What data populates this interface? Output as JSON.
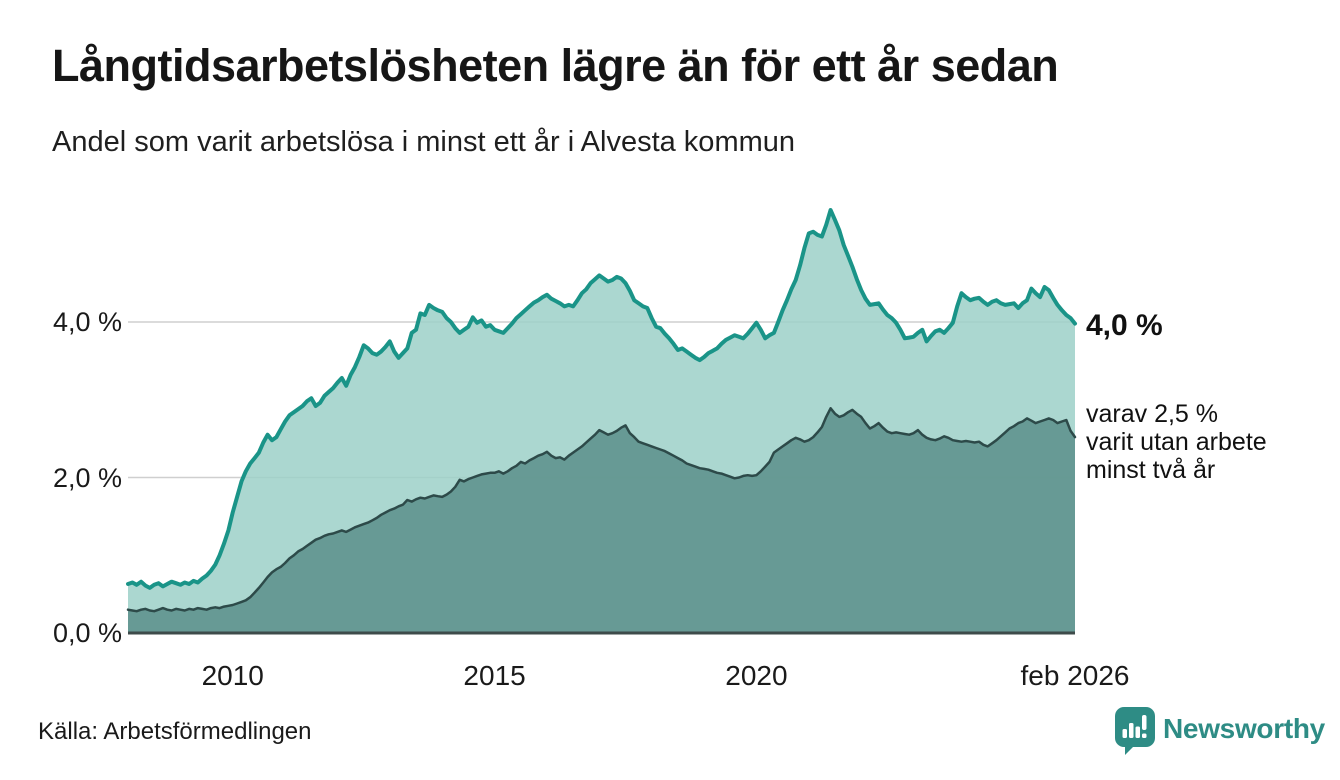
{
  "header": {
    "title": "Långtidsarbetslösheten lägre än för ett år sedan",
    "subtitle": "Andel som varit arbetslösa i minst ett år i Alvesta kommun"
  },
  "chart_data": {
    "type": "area",
    "title": "Långtidsarbetslösheten lägre än för ett år sedan",
    "unit": "%",
    "x_start": "2008-01",
    "x_end": "2026-02",
    "x_interval": "monthly",
    "ylim": [
      0,
      5.6
    ],
    "grid": "horizontal",
    "yticks": [
      {
        "value": 0,
        "label": "0,0 %"
      },
      {
        "value": 2,
        "label": "2,0 %"
      },
      {
        "value": 4,
        "label": "4,0 %"
      }
    ],
    "xticks": [
      {
        "month_index": 24,
        "label": "2010"
      },
      {
        "month_index": 84,
        "label": "2015"
      },
      {
        "month_index": 144,
        "label": "2020"
      },
      {
        "month_index": 217,
        "label": "feb 2026"
      }
    ],
    "colors": {
      "gridline": "#cfcfcf",
      "baseline": "#3e4b4a"
    },
    "series": [
      {
        "name": "Andel arbetslösa minst ett år",
        "line_color": "#1a9488",
        "fill_color": "rgba(156,208,200,0.85)",
        "line_width": 4,
        "end_value": 4.0,
        "values": [
          0.63,
          0.65,
          0.62,
          0.66,
          0.61,
          0.58,
          0.62,
          0.64,
          0.6,
          0.63,
          0.66,
          0.64,
          0.62,
          0.65,
          0.63,
          0.67,
          0.65,
          0.7,
          0.74,
          0.8,
          0.88,
          1.0,
          1.15,
          1.32,
          1.55,
          1.75,
          1.95,
          2.08,
          2.18,
          2.25,
          2.32,
          2.45,
          2.55,
          2.48,
          2.52,
          2.62,
          2.72,
          2.8,
          2.84,
          2.88,
          2.92,
          2.98,
          3.02,
          2.92,
          2.96,
          3.05,
          3.1,
          3.15,
          3.22,
          3.28,
          3.18,
          3.32,
          3.42,
          3.55,
          3.7,
          3.66,
          3.6,
          3.58,
          3.62,
          3.68,
          3.75,
          3.62,
          3.54,
          3.6,
          3.66,
          3.86,
          3.9,
          4.11,
          4.09,
          4.22,
          4.18,
          4.15,
          4.13,
          4.05,
          4.0,
          3.92,
          3.86,
          3.9,
          3.94,
          4.06,
          3.99,
          4.02,
          3.94,
          3.96,
          3.9,
          3.88,
          3.86,
          3.92,
          3.98,
          4.05,
          4.1,
          4.15,
          4.2,
          4.25,
          4.28,
          4.32,
          4.35,
          4.3,
          4.27,
          4.24,
          4.2,
          4.22,
          4.2,
          4.28,
          4.37,
          4.42,
          4.5,
          4.55,
          4.6,
          4.56,
          4.52,
          4.54,
          4.58,
          4.56,
          4.5,
          4.4,
          4.28,
          4.24,
          4.2,
          4.18,
          4.05,
          3.94,
          3.92,
          3.85,
          3.79,
          3.72,
          3.64,
          3.66,
          3.62,
          3.58,
          3.54,
          3.51,
          3.55,
          3.6,
          3.63,
          3.66,
          3.72,
          3.77,
          3.8,
          3.83,
          3.81,
          3.79,
          3.85,
          3.92,
          3.99,
          3.9,
          3.79,
          3.83,
          3.86,
          4.0,
          4.15,
          4.28,
          4.42,
          4.54,
          4.73,
          4.95,
          5.14,
          5.16,
          5.12,
          5.1,
          5.25,
          5.44,
          5.31,
          5.18,
          4.99,
          4.85,
          4.71,
          4.55,
          4.41,
          4.3,
          4.22,
          4.23,
          4.24,
          4.16,
          4.09,
          4.05,
          3.99,
          3.9,
          3.79,
          3.8,
          3.81,
          3.86,
          3.9,
          3.75,
          3.82,
          3.88,
          3.9,
          3.86,
          3.92,
          3.99,
          4.2,
          4.37,
          4.32,
          4.28,
          4.3,
          4.31,
          4.26,
          4.22,
          4.26,
          4.28,
          4.24,
          4.22,
          4.23,
          4.24,
          4.18,
          4.24,
          4.28,
          4.43,
          4.37,
          4.32,
          4.45,
          4.41,
          4.31,
          4.22,
          4.15,
          4.09,
          4.05,
          3.98
        ]
      },
      {
        "name": "Varav utan arbete minst två år",
        "line_color": "#2d4a49",
        "fill_color": "rgba(95,147,142,0.9)",
        "line_width": 2.5,
        "end_value": 2.5,
        "values": [
          0.3,
          0.29,
          0.28,
          0.3,
          0.31,
          0.29,
          0.28,
          0.3,
          0.32,
          0.3,
          0.29,
          0.31,
          0.3,
          0.29,
          0.31,
          0.3,
          0.32,
          0.31,
          0.3,
          0.32,
          0.33,
          0.32,
          0.34,
          0.35,
          0.36,
          0.38,
          0.4,
          0.42,
          0.46,
          0.52,
          0.58,
          0.65,
          0.72,
          0.78,
          0.82,
          0.85,
          0.9,
          0.96,
          1.0,
          1.05,
          1.08,
          1.12,
          1.16,
          1.2,
          1.22,
          1.25,
          1.27,
          1.28,
          1.3,
          1.32,
          1.3,
          1.33,
          1.36,
          1.38,
          1.4,
          1.42,
          1.45,
          1.48,
          1.52,
          1.55,
          1.58,
          1.6,
          1.63,
          1.65,
          1.71,
          1.69,
          1.72,
          1.74,
          1.73,
          1.75,
          1.77,
          1.76,
          1.75,
          1.78,
          1.82,
          1.88,
          1.97,
          1.95,
          1.98,
          2.0,
          2.02,
          2.04,
          2.05,
          2.06,
          2.06,
          2.08,
          2.05,
          2.08,
          2.12,
          2.15,
          2.2,
          2.18,
          2.22,
          2.25,
          2.28,
          2.3,
          2.33,
          2.28,
          2.25,
          2.26,
          2.23,
          2.28,
          2.32,
          2.36,
          2.4,
          2.45,
          2.5,
          2.55,
          2.61,
          2.58,
          2.55,
          2.57,
          2.6,
          2.64,
          2.67,
          2.57,
          2.52,
          2.46,
          2.44,
          2.42,
          2.4,
          2.38,
          2.36,
          2.34,
          2.31,
          2.28,
          2.25,
          2.22,
          2.18,
          2.16,
          2.14,
          2.12,
          2.11,
          2.1,
          2.08,
          2.06,
          2.05,
          2.03,
          2.01,
          1.99,
          2.0,
          2.02,
          2.03,
          2.02,
          2.03,
          2.08,
          2.14,
          2.2,
          2.32,
          2.36,
          2.4,
          2.44,
          2.48,
          2.51,
          2.49,
          2.46,
          2.48,
          2.52,
          2.58,
          2.65,
          2.78,
          2.89,
          2.82,
          2.78,
          2.8,
          2.84,
          2.87,
          2.82,
          2.78,
          2.7,
          2.63,
          2.66,
          2.7,
          2.64,
          2.59,
          2.57,
          2.58,
          2.57,
          2.56,
          2.55,
          2.57,
          2.61,
          2.55,
          2.51,
          2.49,
          2.48,
          2.5,
          2.53,
          2.51,
          2.48,
          2.47,
          2.46,
          2.47,
          2.46,
          2.45,
          2.46,
          2.42,
          2.4,
          2.44,
          2.48,
          2.53,
          2.58,
          2.63,
          2.66,
          2.7,
          2.72,
          2.76,
          2.73,
          2.7,
          2.72,
          2.74,
          2.76,
          2.74,
          2.7,
          2.72,
          2.74,
          2.6,
          2.52
        ]
      }
    ],
    "annotations": {
      "end_label_total": "4,0 %",
      "end_label_part": "varav 2,5 %\nvarit utan arbete\nminst två år"
    }
  },
  "footer": {
    "source": "Källa: Arbetsförmedlingen",
    "logo_text": "Newsworthy",
    "logo_color": "#2e8c85"
  }
}
